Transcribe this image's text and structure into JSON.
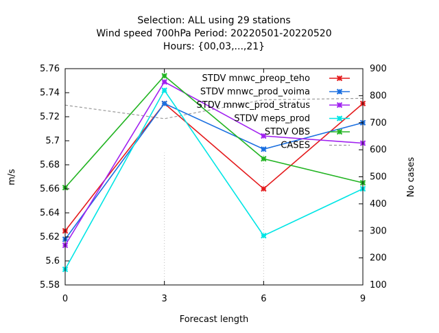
{
  "chart_data": {
    "type": "line",
    "title_lines": [
      "Selection: ALL using    29 stations",
      "Wind speed 700hPa   Period: 20220501-20220520",
      "Hours: {00,03,...,21}"
    ],
    "xlabel": "Forecast length",
    "ylabel": "m/s",
    "y2label": "No cases",
    "x": [
      0,
      3,
      6,
      9
    ],
    "x_ticks": [
      "0",
      "3",
      "6",
      "9"
    ],
    "xlim": [
      0,
      9
    ],
    "ylim": [
      5.58,
      5.76
    ],
    "y_ticks": [
      "5.58",
      "5.6",
      "5.62",
      "5.64",
      "5.66",
      "5.68",
      "5.7",
      "5.72",
      "5.74",
      "5.76"
    ],
    "y2lim": [
      100,
      900
    ],
    "y2_ticks": [
      "100",
      "200",
      "300",
      "400",
      "500",
      "600",
      "700",
      "800",
      "900"
    ],
    "legend_position": "top-right",
    "series": [
      {
        "name": "STDV mnwc_preop_teho",
        "color": "#e41a1c",
        "values": [
          5.625,
          5.731,
          5.66,
          5.731
        ]
      },
      {
        "name": "STDV mnwc_prod_voima",
        "color": "#1a6fe0",
        "values": [
          5.618,
          5.731,
          5.693,
          5.715
        ]
      },
      {
        "name": "STDV mnwc_prod_stratus",
        "color": "#a020f0",
        "values": [
          5.613,
          5.749,
          5.704,
          5.698
        ]
      },
      {
        "name": "STDV meps_prod",
        "color": "#00e5e5",
        "values": [
          5.593,
          5.742,
          5.621,
          5.66
        ]
      },
      {
        "name": "STDV OBS",
        "color": "#22b422",
        "values": [
          5.661,
          5.754,
          5.685,
          5.665
        ]
      }
    ],
    "cases": {
      "name": "CASES",
      "color": "#999999",
      "axis": "y2",
      "values": [
        765,
        715,
        785,
        790
      ]
    }
  }
}
